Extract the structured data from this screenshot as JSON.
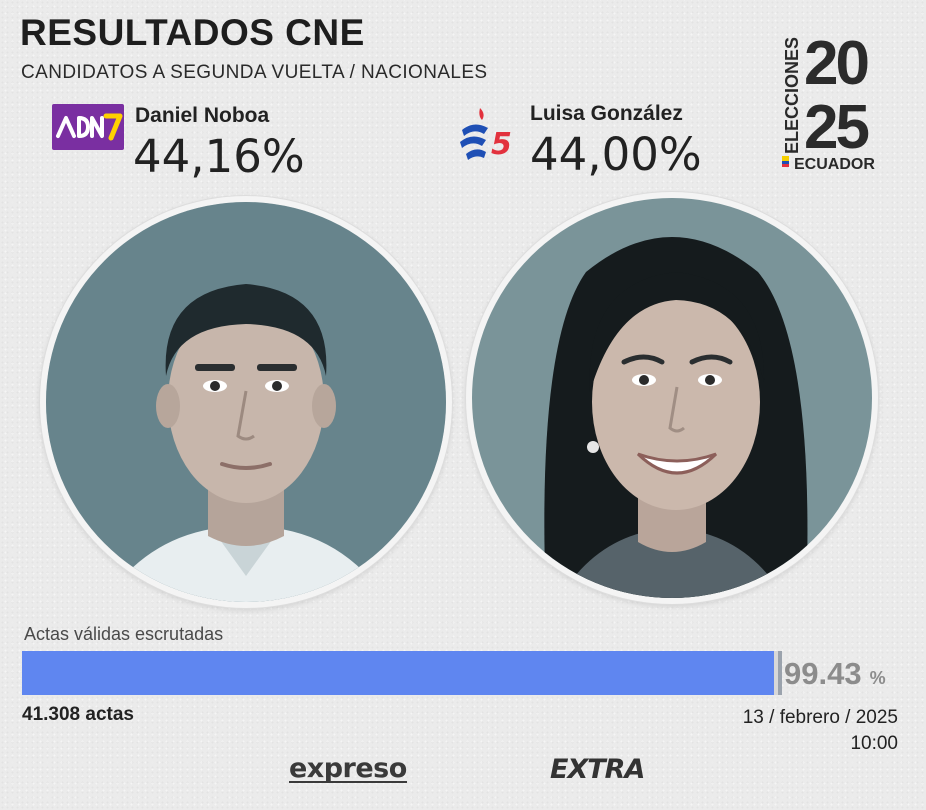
{
  "header": {
    "title": "RESULTADOS CNE",
    "subtitle": "CANDIDATOS A SEGUNDA VUELTA / NACIONALES"
  },
  "badge": {
    "word": "ELECCIONES",
    "year_top": "20",
    "year_bottom": "25",
    "country": "ECUADOR"
  },
  "candidates": [
    {
      "name": "Daniel Noboa",
      "percentage": "44,16%",
      "party_logo": "adn-logo",
      "party_color": "#7a2fa1",
      "logo_text": "ADN7",
      "photo_icon": "person-portrait-male"
    },
    {
      "name": "Luisa González",
      "percentage": "44,00%",
      "party_logo": "revolucion-ciudadana-logo",
      "party_color": "#1e4fb5",
      "logo_number": "5",
      "photo_icon": "person-portrait-female"
    }
  ],
  "progress": {
    "label": "Actas válidas escrutadas",
    "value": 99.43,
    "value_text": "99.43",
    "unit": "%",
    "fill_color": "#5f86f0",
    "count": "41.308 actas",
    "date": "13 / febrero / 2025",
    "time": "10:00"
  },
  "footer": {
    "brand_1": "expreso",
    "brand_2": "EXTRA"
  }
}
